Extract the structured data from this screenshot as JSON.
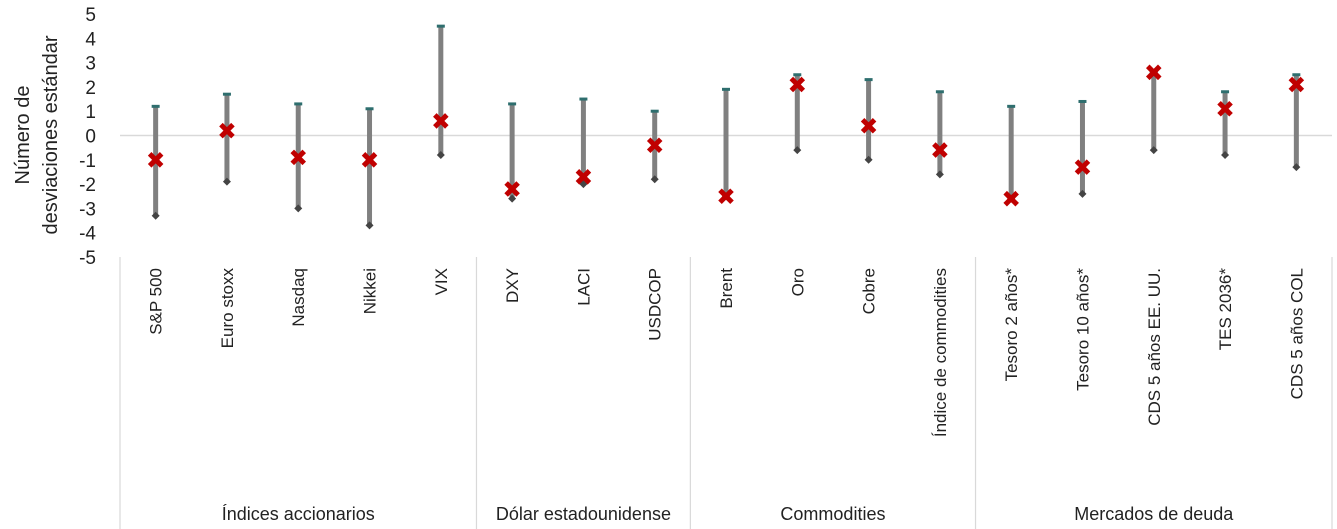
{
  "chart_data": {
    "type": "range-dot",
    "ylabel": [
      "Número de",
      "desviaciones estándar"
    ],
    "ylim": [
      -5,
      5
    ],
    "yticks": [
      5,
      4,
      3,
      2,
      1,
      0,
      -1,
      -2,
      -3,
      -4,
      -5
    ],
    "categories": [
      "S&P 500",
      "Euro stoxx",
      "Nasdaq",
      "Nikkei",
      "VIX",
      "DXY",
      "LACI",
      "USDCOP",
      "Brent",
      "Oro",
      "Cobre",
      "Índice de commodities",
      "Tesoro 2 años*",
      "Tesoro 10 años*",
      "CDS 5 años EE. UU.",
      "TES 2036*",
      "CDS 5 años COL"
    ],
    "series": [
      {
        "name": "max",
        "values": [
          1.2,
          1.7,
          1.3,
          1.1,
          4.5,
          1.3,
          1.5,
          1.0,
          1.9,
          2.5,
          2.3,
          1.8,
          1.2,
          1.4,
          2.6,
          1.8,
          2.5
        ]
      },
      {
        "name": "min",
        "values": [
          -3.3,
          -1.9,
          -3.0,
          -3.7,
          -0.8,
          -2.6,
          -2.0,
          -1.8,
          -2.5,
          -0.6,
          -1.0,
          -1.6,
          -2.6,
          -2.4,
          -0.6,
          -0.8,
          -1.3
        ]
      },
      {
        "name": "current",
        "values": [
          -1.0,
          0.2,
          -0.9,
          -1.0,
          0.6,
          -2.2,
          -1.7,
          -0.4,
          -2.5,
          2.1,
          0.4,
          -0.6,
          -2.6,
          -1.3,
          2.6,
          1.1,
          2.1
        ]
      }
    ],
    "groups": [
      {
        "label": "Índices accionarios",
        "count": 5
      },
      {
        "label": "Dólar estadounidense",
        "count": 3
      },
      {
        "label": "Commodities",
        "count": 4
      },
      {
        "label": "Mercados de deuda",
        "count": 5
      }
    ],
    "colors": {
      "bar": "#808080",
      "max_cap": "#2e6e6e",
      "min_marker": "#444444",
      "current_marker": "#c00000",
      "zero_line": "#d9d9d9",
      "separator": "#d9d9d9"
    }
  }
}
